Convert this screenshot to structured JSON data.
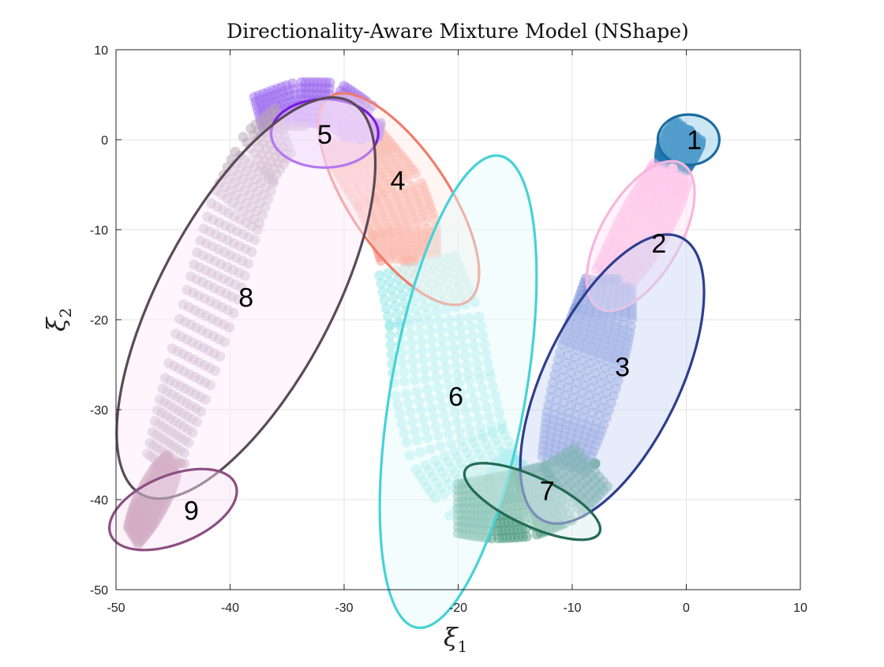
{
  "chart_data": {
    "type": "scatter",
    "title": "Directionality-Aware Mixture Model (NShape)",
    "xlabel": "ξ",
    "xlabel_sub": "1",
    "ylabel": "ξ",
    "ylabel_sub": "2",
    "xlim": [
      -50,
      10
    ],
    "ylim": [
      -50,
      10
    ],
    "xticks": [
      "-50",
      "-40",
      "-30",
      "-20",
      "-10",
      "0",
      "10"
    ],
    "yticks": [
      "10",
      "0",
      "-10",
      "-20",
      "-30",
      "-40",
      "-50"
    ],
    "grid": true,
    "legend": "none",
    "components": [
      {
        "label": "1",
        "center": [
          0.2,
          0.0
        ],
        "semi_axes": [
          2.7,
          2.8
        ],
        "angle_deg": 0,
        "edge": "#1b6aa0",
        "fill": "#8ecae6",
        "label_pos": [
          0.7,
          0.0
        ]
      },
      {
        "label": "2",
        "center": [
          -4.0,
          -10.7
        ],
        "semi_axes": [
          7.3,
          4.4
        ],
        "angle_deg": 60,
        "edge": "#f7b6dd",
        "fill": "#ffe3f3",
        "label_pos": [
          -2.4,
          -11.5
        ]
      },
      {
        "label": "3",
        "center": [
          -6.5,
          -26.6
        ],
        "semi_axes": [
          13.8,
          7.5
        ],
        "angle_deg": 64,
        "edge": "#2e3e8c",
        "fill": "#c9d4f5",
        "label_pos": [
          -5.6,
          -25.2
        ]
      },
      {
        "label": "4",
        "center": [
          -25.2,
          -6.6
        ],
        "semi_axes": [
          10.8,
          5.5
        ],
        "angle_deg": -56,
        "edge": "#ee7d6b",
        "fill": "#ffe9e4",
        "label_pos": [
          -25.3,
          -4.5
        ]
      },
      {
        "label": "5",
        "center": [
          -31.7,
          0.7
        ],
        "semi_axes": [
          4.7,
          3.8
        ],
        "angle_deg": 0,
        "edge": "#7a1ae0",
        "fill": "#e5c8ff",
        "label_pos": [
          -31.7,
          0.6
        ]
      },
      {
        "label": "6",
        "center": [
          -20.0,
          -28.0
        ],
        "semi_axes": [
          21.0,
          7.5
        ],
        "angle_deg": 80,
        "edge": "#47d2d6",
        "fill": "#e5fbfb",
        "label_pos": [
          -20.2,
          -28.5
        ]
      },
      {
        "label": "7",
        "center": [
          -13.5,
          -40.2
        ],
        "semi_axes": [
          6.5,
          2.7
        ],
        "angle_deg": -25,
        "edge": "#236b54",
        "fill": "#d8f0ea",
        "label_pos": [
          -12.2,
          -39.0
        ]
      },
      {
        "label": "8",
        "center": [
          -38.6,
          -17.6
        ],
        "semi_axes": [
          19.5,
          9.6
        ],
        "angle_deg": 62,
        "edge": "#5b4a58",
        "fill": "#fde8fb",
        "label_pos": [
          -38.6,
          -17.5
        ]
      },
      {
        "label": "9",
        "center": [
          -45.0,
          -41.1
        ],
        "semi_axes": [
          5.9,
          3.8
        ],
        "angle_deg": 22,
        "edge": "#8c4f80",
        "fill": "#f6e3f3",
        "label_pos": [
          -43.4,
          -41.2
        ]
      }
    ],
    "trajectory_groups": [
      {
        "component": "1",
        "color": "#1f78b4",
        "count": 6,
        "spread": 0.55,
        "dx": [
          0.0,
          0.2,
          -0.2
        ],
        "points": [
          [
            -1.2,
            -3.0
          ],
          [
            -0.9,
            -1.8
          ],
          [
            -0.5,
            -0.5
          ],
          [
            0.0,
            0.5
          ],
          [
            0.3,
            1.0
          ]
        ]
      },
      {
        "component": "2",
        "color": "#ffb3e1",
        "count": 7,
        "spread": 0.6,
        "dx": [
          0.0,
          0.3,
          -0.3
        ],
        "points": [
          [
            -6.5,
            -15.5
          ],
          [
            -5.0,
            -12.5
          ],
          [
            -3.5,
            -9.0
          ],
          [
            -2.2,
            -6.0
          ],
          [
            -1.2,
            -3.2
          ]
        ]
      },
      {
        "component": "3",
        "color": "#7a8fd8",
        "count": 9,
        "spread": 0.75,
        "dx": [
          -1.5,
          1.5,
          0.0
        ],
        "points": [
          [
            -10.0,
            -36.0
          ],
          [
            -9.0,
            -31.0
          ],
          [
            -7.5,
            -24.0
          ],
          [
            -6.5,
            -19.5
          ],
          [
            -6.0,
            -15.5
          ]
        ]
      },
      {
        "component": "4",
        "color": "#f5907f",
        "count": 8,
        "spread": 0.6,
        "dx": [
          -1.0,
          1.0,
          0.0
        ],
        "points": [
          [
            -29.0,
            0.5
          ],
          [
            -27.5,
            -2.5
          ],
          [
            -25.5,
            -6.0
          ],
          [
            -24.2,
            -10.0
          ],
          [
            -23.8,
            -13.5
          ]
        ]
      },
      {
        "component": "5",
        "color": "#a070f0",
        "count": 8,
        "spread": 0.45,
        "dx": [
          0.0,
          0.0,
          0.0
        ],
        "points": [
          [
            -37.5,
            3.0
          ],
          [
            -34.0,
            4.2
          ],
          [
            -31.0,
            4.0
          ],
          [
            -28.5,
            2.0
          ],
          [
            -28.5,
            0.0
          ]
        ]
      },
      {
        "component": "6",
        "color": "#8ee5e5",
        "count": 10,
        "spread": 0.7,
        "dx": [
          -1.2,
          1.2,
          0.0
        ],
        "points": [
          [
            -23.0,
            -14.0
          ],
          [
            -21.5,
            -20.0
          ],
          [
            -20.8,
            -27.0
          ],
          [
            -19.5,
            -34.0
          ],
          [
            -17.5,
            -38.5
          ],
          [
            -15.0,
            -39.8
          ]
        ]
      },
      {
        "component": "7",
        "color": "#4a9a80",
        "count": 9,
        "spread": 0.6,
        "dx": [
          0.0,
          0.0,
          0.0
        ],
        "points": [
          [
            -20.0,
            -41.0
          ],
          [
            -17.0,
            -41.0
          ],
          [
            -14.0,
            -40.5
          ],
          [
            -11.0,
            -39.2
          ],
          [
            -8.0,
            -36.0
          ]
        ]
      },
      {
        "component": "8",
        "color": "#b7a3b6",
        "count": 9,
        "spread": 0.8,
        "dx": [
          -3.0,
          3.0,
          0.0
        ],
        "points": [
          [
            -44.5,
            -36.0
          ],
          [
            -42.5,
            -28.0
          ],
          [
            -40.0,
            -17.0
          ],
          [
            -38.0,
            -8.0
          ],
          [
            -36.0,
            -2.0
          ],
          [
            -33.5,
            1.5
          ]
        ]
      },
      {
        "component": "9",
        "color": "#b5839f",
        "count": 7,
        "spread": 0.6,
        "dx": [
          -2.0,
          2.0,
          0.0
        ],
        "points": [
          [
            -47.5,
            -44.0
          ],
          [
            -46.5,
            -41.5
          ],
          [
            -45.0,
            -38.0
          ],
          [
            -44.0,
            -36.0
          ]
        ]
      }
    ]
  }
}
